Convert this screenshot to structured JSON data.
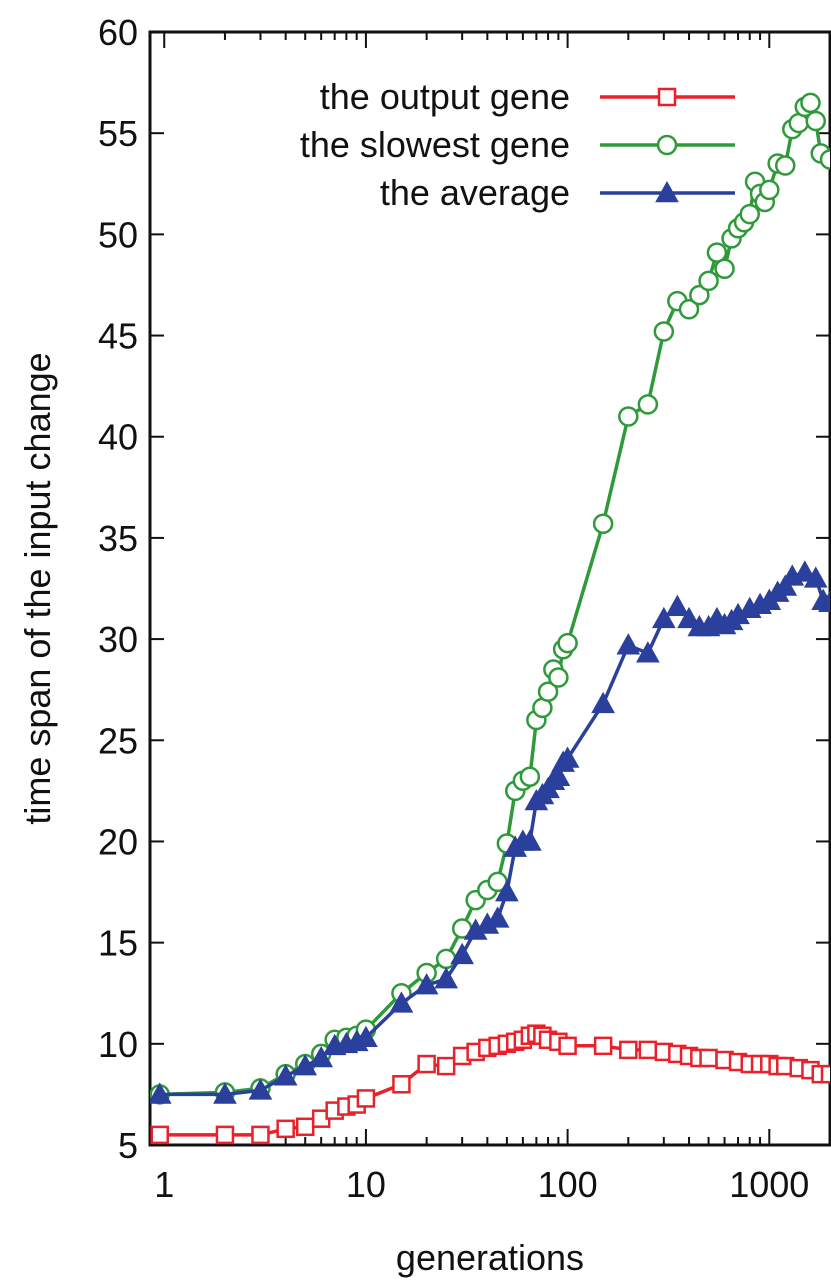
{
  "chart_data": {
    "type": "line",
    "xlabel": "generations",
    "ylabel": "time span of the input change",
    "x_scale": "log",
    "xlim": [
      0.85,
      2000
    ],
    "ylim": [
      5,
      60
    ],
    "x_ticks": [
      {
        "value": 1,
        "label": "1"
      },
      {
        "value": 10,
        "label": "10"
      },
      {
        "value": 100,
        "label": "100"
      },
      {
        "value": 1000,
        "label": "1000"
      }
    ],
    "y_ticks": [
      {
        "value": 5,
        "label": "5"
      },
      {
        "value": 10,
        "label": "10"
      },
      {
        "value": 15,
        "label": "15"
      },
      {
        "value": 20,
        "label": "20"
      },
      {
        "value": 25,
        "label": "25"
      },
      {
        "value": 30,
        "label": "30"
      },
      {
        "value": 35,
        "label": "35"
      },
      {
        "value": 40,
        "label": "40"
      },
      {
        "value": 45,
        "label": "45"
      },
      {
        "value": 50,
        "label": "50"
      },
      {
        "value": 55,
        "label": "55"
      },
      {
        "value": 60,
        "label": "60"
      }
    ],
    "grid": false,
    "legend_position": "top-right",
    "series": [
      {
        "name": "the output gene",
        "color": "#e8212a",
        "marker": "square",
        "points": [
          [
            0.95,
            5.5
          ],
          [
            2,
            5.5
          ],
          [
            3,
            5.5
          ],
          [
            4,
            5.8
          ],
          [
            5,
            5.9
          ],
          [
            6,
            6.3
          ],
          [
            7,
            6.7
          ],
          [
            8,
            6.9
          ],
          [
            9,
            7.0
          ],
          [
            10,
            7.3
          ],
          [
            15,
            8.0
          ],
          [
            20,
            9.0
          ],
          [
            25,
            8.9
          ],
          [
            30,
            9.4
          ],
          [
            35,
            9.6
          ],
          [
            40,
            9.8
          ],
          [
            45,
            9.9
          ],
          [
            50,
            10.0
          ],
          [
            55,
            10.1
          ],
          [
            60,
            10.2
          ],
          [
            65,
            10.4
          ],
          [
            70,
            10.5
          ],
          [
            75,
            10.4
          ],
          [
            80,
            10.2
          ],
          [
            90,
            10.1
          ],
          [
            100,
            9.9
          ],
          [
            150,
            9.9
          ],
          [
            200,
            9.7
          ],
          [
            250,
            9.7
          ],
          [
            300,
            9.6
          ],
          [
            350,
            9.5
          ],
          [
            400,
            9.4
          ],
          [
            450,
            9.3
          ],
          [
            500,
            9.3
          ],
          [
            600,
            9.2
          ],
          [
            700,
            9.1
          ],
          [
            800,
            9.0
          ],
          [
            900,
            9.0
          ],
          [
            1000,
            9.0
          ],
          [
            1100,
            8.9
          ],
          [
            1200,
            8.9
          ],
          [
            1400,
            8.8
          ],
          [
            1600,
            8.7
          ],
          [
            1800,
            8.5
          ],
          [
            2000,
            8.5
          ]
        ]
      },
      {
        "name": "the slowest gene",
        "color": "#2f9a3a",
        "marker": "circle",
        "points": [
          [
            0.95,
            7.5
          ],
          [
            2,
            7.6
          ],
          [
            3,
            7.8
          ],
          [
            4,
            8.5
          ],
          [
            5,
            9.0
          ],
          [
            6,
            9.5
          ],
          [
            7,
            10.2
          ],
          [
            8,
            10.3
          ],
          [
            9,
            10.4
          ],
          [
            10,
            10.7
          ],
          [
            15,
            12.5
          ],
          [
            20,
            13.5
          ],
          [
            25,
            14.2
          ],
          [
            30,
            15.7
          ],
          [
            35,
            17.1
          ],
          [
            40,
            17.6
          ],
          [
            45,
            18.0
          ],
          [
            50,
            19.9
          ],
          [
            55,
            22.5
          ],
          [
            60,
            23.0
          ],
          [
            65,
            23.2
          ],
          [
            70,
            26.0
          ],
          [
            75,
            26.6
          ],
          [
            80,
            27.4
          ],
          [
            85,
            28.5
          ],
          [
            90,
            28.1
          ],
          [
            95,
            29.5
          ],
          [
            100,
            29.8
          ],
          [
            150,
            35.7
          ],
          [
            200,
            41.0
          ],
          [
            250,
            41.6
          ],
          [
            300,
            45.2
          ],
          [
            350,
            46.7
          ],
          [
            400,
            46.3
          ],
          [
            450,
            47.0
          ],
          [
            500,
            47.7
          ],
          [
            550,
            49.1
          ],
          [
            600,
            48.3
          ],
          [
            650,
            49.8
          ],
          [
            700,
            50.3
          ],
          [
            750,
            50.6
          ],
          [
            800,
            51.0
          ],
          [
            850,
            52.6
          ],
          [
            900,
            52.0
          ],
          [
            950,
            51.6
          ],
          [
            1000,
            52.2
          ],
          [
            1100,
            53.5
          ],
          [
            1200,
            53.4
          ],
          [
            1300,
            55.2
          ],
          [
            1400,
            55.5
          ],
          [
            1500,
            56.3
          ],
          [
            1600,
            56.5
          ],
          [
            1700,
            55.6
          ],
          [
            1800,
            54.0
          ],
          [
            2000,
            53.7
          ]
        ]
      },
      {
        "name": "the average",
        "color": "#2b3f9c",
        "marker": "triangle",
        "points": [
          [
            0.95,
            7.5
          ],
          [
            2,
            7.5
          ],
          [
            3,
            7.7
          ],
          [
            4,
            8.4
          ],
          [
            5,
            8.9
          ],
          [
            6,
            9.3
          ],
          [
            7,
            9.9
          ],
          [
            8,
            10.0
          ],
          [
            9,
            10.1
          ],
          [
            10,
            10.3
          ],
          [
            15,
            12.0
          ],
          [
            20,
            12.9
          ],
          [
            25,
            13.2
          ],
          [
            30,
            14.4
          ],
          [
            35,
            15.6
          ],
          [
            40,
            15.9
          ],
          [
            45,
            16.2
          ],
          [
            50,
            17.5
          ],
          [
            55,
            19.7
          ],
          [
            60,
            20.0
          ],
          [
            65,
            20.0
          ],
          [
            70,
            22.0
          ],
          [
            75,
            22.3
          ],
          [
            80,
            22.6
          ],
          [
            85,
            23.0
          ],
          [
            90,
            23.2
          ],
          [
            95,
            23.9
          ],
          [
            100,
            24.1
          ],
          [
            150,
            26.8
          ],
          [
            200,
            29.7
          ],
          [
            250,
            29.3
          ],
          [
            300,
            31.0
          ],
          [
            350,
            31.6
          ],
          [
            400,
            31.0
          ],
          [
            450,
            30.6
          ],
          [
            500,
            30.6
          ],
          [
            550,
            31.0
          ],
          [
            600,
            30.7
          ],
          [
            650,
            30.9
          ],
          [
            700,
            31.2
          ],
          [
            800,
            31.5
          ],
          [
            900,
            31.7
          ],
          [
            1000,
            31.9
          ],
          [
            1100,
            32.3
          ],
          [
            1200,
            32.6
          ],
          [
            1300,
            33.1
          ],
          [
            1500,
            33.3
          ],
          [
            1700,
            33.0
          ],
          [
            1850,
            31.9
          ],
          [
            2000,
            31.8
          ]
        ]
      }
    ]
  }
}
